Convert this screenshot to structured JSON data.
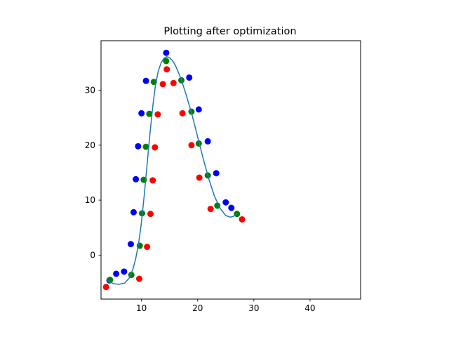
{
  "chart_data": {
    "type": "scatter",
    "title": "Plotting after optimization",
    "xlabel": "",
    "ylabel": "",
    "xlim": [
      2.8,
      49
    ],
    "ylim": [
      -8,
      39
    ],
    "grid": false,
    "x_ticks": [
      10,
      20,
      30,
      40
    ],
    "x_tick_labels": [
      "10",
      "20",
      "30",
      "40"
    ],
    "y_ticks": [
      0,
      10,
      20,
      30
    ],
    "y_tick_labels": [
      "0",
      "10",
      "20",
      "30"
    ],
    "series": [
      {
        "type": "scatter",
        "color": "#0000ff",
        "points": [
          [
            4.3,
            -4.6
          ],
          [
            5.5,
            -3.4
          ],
          [
            6.9,
            -3.0
          ],
          [
            8.1,
            2.0
          ],
          [
            8.6,
            7.8
          ],
          [
            9.0,
            13.8
          ],
          [
            9.4,
            19.8
          ],
          [
            10.0,
            25.8
          ],
          [
            10.8,
            31.7
          ],
          [
            14.4,
            36.8
          ],
          [
            18.5,
            32.3
          ],
          [
            20.2,
            26.5
          ],
          [
            21.8,
            20.7
          ],
          [
            23.3,
            14.9
          ],
          [
            25.0,
            9.6
          ],
          [
            26.0,
            8.6
          ]
        ]
      },
      {
        "type": "scatter",
        "color": "#ff0000",
        "points": [
          [
            3.7,
            -5.8
          ],
          [
            9.6,
            -4.3
          ],
          [
            11.0,
            1.5
          ],
          [
            11.6,
            7.5
          ],
          [
            12.0,
            13.6
          ],
          [
            12.4,
            19.6
          ],
          [
            12.9,
            25.6
          ],
          [
            13.8,
            31.1
          ],
          [
            14.5,
            33.8
          ],
          [
            15.7,
            31.3
          ],
          [
            17.3,
            25.8
          ],
          [
            18.9,
            20.0
          ],
          [
            20.3,
            14.1
          ],
          [
            22.3,
            8.4
          ],
          [
            27.9,
            6.5
          ]
        ]
      },
      {
        "type": "scatter",
        "color": "#008000",
        "points": [
          [
            4.4,
            -4.5
          ],
          [
            8.2,
            -3.6
          ],
          [
            9.7,
            1.7
          ],
          [
            10.1,
            7.6
          ],
          [
            10.4,
            13.7
          ],
          [
            10.8,
            19.7
          ],
          [
            11.4,
            25.7
          ],
          [
            12.2,
            31.5
          ],
          [
            14.4,
            35.3
          ],
          [
            17.1,
            31.8
          ],
          [
            18.9,
            26.1
          ],
          [
            20.2,
            20.3
          ],
          [
            21.8,
            14.5
          ],
          [
            23.5,
            9.0
          ],
          [
            27.0,
            7.5
          ]
        ]
      },
      {
        "type": "line",
        "color": "#1f77b4",
        "points": [
          [
            4.0,
            -4.6
          ],
          [
            5.0,
            -5.2
          ],
          [
            6.0,
            -5.3
          ],
          [
            7.0,
            -5.1
          ],
          [
            7.8,
            -4.2
          ],
          [
            8.5,
            -2.5
          ],
          [
            9.0,
            -0.5
          ],
          [
            9.5,
            2.2
          ],
          [
            10.0,
            6.0
          ],
          [
            10.5,
            11.0
          ],
          [
            11.0,
            16.5
          ],
          [
            11.5,
            22.0
          ],
          [
            12.0,
            27.0
          ],
          [
            12.5,
            31.0
          ],
          [
            13.0,
            33.5
          ],
          [
            13.5,
            35.0
          ],
          [
            14.0,
            35.8
          ],
          [
            14.5,
            36.1
          ],
          [
            15.0,
            35.9
          ],
          [
            15.5,
            35.4
          ],
          [
            16.0,
            34.6
          ],
          [
            17.0,
            32.2
          ],
          [
            18.0,
            29.0
          ],
          [
            19.0,
            25.5
          ],
          [
            20.0,
            21.5
          ],
          [
            21.0,
            17.5
          ],
          [
            22.0,
            13.8
          ],
          [
            23.0,
            10.7
          ],
          [
            24.0,
            8.5
          ],
          [
            25.0,
            7.2
          ],
          [
            25.8,
            6.9
          ],
          [
            26.5,
            7.1
          ],
          [
            27.0,
            7.6
          ]
        ]
      }
    ]
  }
}
